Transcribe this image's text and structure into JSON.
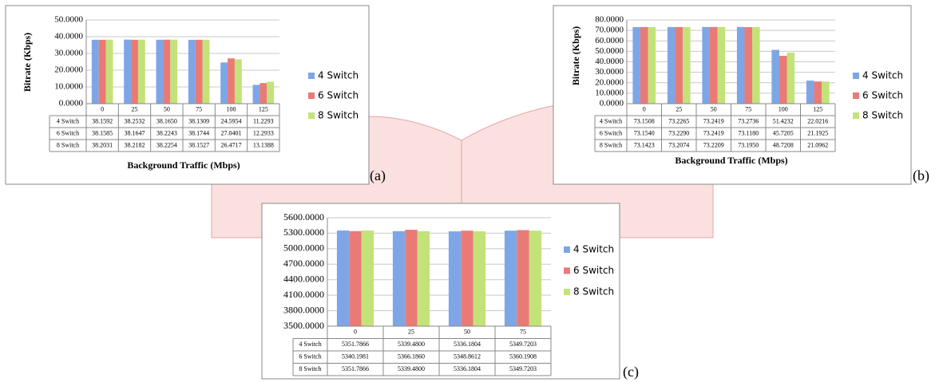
{
  "chart_data": [
    {
      "type": "bar",
      "panel_label": "(a)",
      "ylabel": "Bitrate (Kbps)",
      "xlabel": "Background Traffic (Mbps)",
      "categories": [
        "0",
        "25",
        "50",
        "75",
        "100",
        "125"
      ],
      "ylim": [
        0,
        50
      ],
      "yticks": [
        {
          "value": 0,
          "label": "0.0000"
        },
        {
          "value": 10,
          "label": "10.0000"
        },
        {
          "value": 20,
          "label": "20.0000"
        },
        {
          "value": 30,
          "label": "30.0000"
        },
        {
          "value": 40,
          "label": "40.0000"
        },
        {
          "value": 50,
          "label": "50.0000"
        }
      ],
      "grid": true,
      "series": [
        {
          "name": "4 Switch",
          "color": "#7ea6e6",
          "values": [
            38.1592,
            38.2532,
            38.165,
            38.1309,
            24.5954,
            11.2293
          ],
          "value_labels": [
            "38.1592",
            "38.2532",
            "38.1650",
            "38.1309",
            "24.5954",
            "11.2293"
          ]
        },
        {
          "name": "6 Switch",
          "color": "#ea7a76",
          "values": [
            38.1585,
            38.1647,
            38.2243,
            38.1744,
            27.0401,
            12.2933
          ],
          "value_labels": [
            "38.1585",
            "38.1647",
            "38.2243",
            "38.1744",
            "27.0401",
            "12.2933"
          ]
        },
        {
          "name": "8 Switch",
          "color": "#c3e27a",
          "values": [
            38.2031,
            38.2182,
            38.2254,
            38.1527,
            26.4717,
            13.1388
          ],
          "value_labels": [
            "38.2031",
            "38.2182",
            "38.2254",
            "38.1527",
            "26.4717",
            "13.1388"
          ]
        }
      ]
    },
    {
      "type": "bar",
      "panel_label": "(b)",
      "ylabel": "Bitrate (Kbps)",
      "xlabel": "Background Traffic (Mbps)",
      "categories": [
        "0",
        "25",
        "50",
        "75",
        "100",
        "125"
      ],
      "ylim": [
        0,
        80
      ],
      "yticks": [
        {
          "value": 0,
          "label": "0.0000"
        },
        {
          "value": 10,
          "label": "10.0000"
        },
        {
          "value": 20,
          "label": "20.0000"
        },
        {
          "value": 30,
          "label": "30.0000"
        },
        {
          "value": 40,
          "label": "40.0000"
        },
        {
          "value": 50,
          "label": "50.0000"
        },
        {
          "value": 60,
          "label": "60.0000"
        },
        {
          "value": 70,
          "label": "70.0000"
        },
        {
          "value": 80,
          "label": "80.0000"
        }
      ],
      "grid": true,
      "series": [
        {
          "name": "4 Switch",
          "color": "#7ea6e6",
          "values": [
            73.1508,
            73.2265,
            73.2419,
            73.2736,
            51.4232,
            22.0216
          ],
          "value_labels": [
            "73.1508",
            "73.2265",
            "73.2419",
            "73.2736",
            "51.4232",
            "22.0216"
          ]
        },
        {
          "name": "6 Switch",
          "color": "#ea7a76",
          "values": [
            73.154,
            73.229,
            73.2419,
            73.118,
            45.7205,
            21.1925
          ],
          "value_labels": [
            "73.1540",
            "73.2290",
            "73.2419",
            "73.1180",
            "45.7205",
            "21.1925"
          ]
        },
        {
          "name": "8 Switch",
          "color": "#c3e27a",
          "values": [
            73.1423,
            73.2074,
            73.2209,
            73.195,
            48.7208,
            21.0962
          ],
          "value_labels": [
            "73.1423",
            "73.2074",
            "73.2209",
            "73.1950",
            "48.7208",
            "21.0962"
          ]
        }
      ]
    },
    {
      "type": "bar",
      "panel_label": "(c)",
      "categories": [
        "0",
        "25",
        "50",
        "75"
      ],
      "ylim": [
        3500,
        5600
      ],
      "yticks": [
        {
          "value": 3500,
          "label": "3500.0000"
        },
        {
          "value": 3800,
          "label": "3800.0000"
        },
        {
          "value": 4100,
          "label": "4100.0000"
        },
        {
          "value": 4400,
          "label": "4400.0000"
        },
        {
          "value": 4700,
          "label": "4700.0000"
        },
        {
          "value": 5000,
          "label": "5000.0000"
        },
        {
          "value": 5300,
          "label": "5300.0000"
        },
        {
          "value": 5600,
          "label": "5600.0000"
        }
      ],
      "grid": true,
      "series": [
        {
          "name": "4 Switch",
          "color": "#7ea6e6",
          "values": [
            5351.7866,
            5339.48,
            5336.1804,
            5349.7203
          ],
          "value_labels": [
            "5351.7866",
            "5339.4800",
            "5336.1804",
            "5349.7203"
          ]
        },
        {
          "name": "6 Switch",
          "color": "#ea7a76",
          "values": [
            5340.1981,
            5366.186,
            5348.8612,
            5360.1908
          ],
          "value_labels": [
            "5340.1981",
            "5366.1860",
            "5348.8612",
            "5360.1908"
          ]
        },
        {
          "name": "8 Switch",
          "color": "#c3e27a",
          "values": [
            5351.7866,
            5339.48,
            5336.1804,
            5349.7203
          ],
          "value_labels": [
            "5351.7866",
            "5339.4800",
            "5336.1804",
            "5349.7203"
          ]
        }
      ]
    }
  ]
}
